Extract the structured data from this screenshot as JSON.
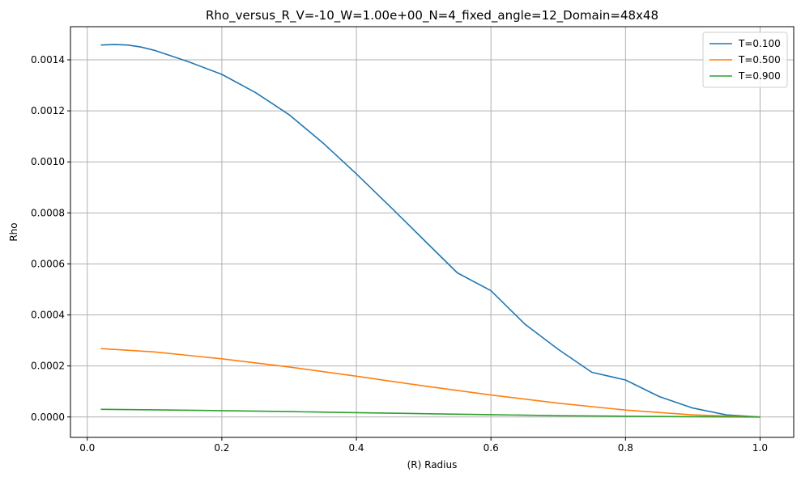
{
  "chart_data": {
    "type": "line",
    "title": "Rho_versus_R_V=-10_W=1.00e+00_N=4_fixed_angle=12_Domain=48x48",
    "xlabel": "(R) Radius",
    "ylabel": "Rho",
    "xlim": [
      -0.025,
      1.05
    ],
    "ylim": [
      -8e-05,
      0.00153
    ],
    "xticks": [
      0.0,
      0.2,
      0.4,
      0.6,
      0.8,
      1.0
    ],
    "xtick_labels": [
      "0.0",
      "0.2",
      "0.4",
      "0.6",
      "0.8",
      "1.0"
    ],
    "yticks": [
      0,
      0.0002,
      0.0004,
      0.0006,
      0.0008,
      0.001,
      0.0012,
      0.0014
    ],
    "ytick_labels": [
      "0.0000",
      "0.0002",
      "0.0004",
      "0.0006",
      "0.0008",
      "0.0010",
      "0.0012",
      "0.0014"
    ],
    "grid": true,
    "legend_position": "top-right",
    "series": [
      {
        "name": "T=0.100",
        "color": "#1f77b4",
        "x": [
          0.02,
          0.04,
          0.06,
          0.08,
          0.1,
          0.15,
          0.2,
          0.25,
          0.3,
          0.35,
          0.4,
          0.45,
          0.5,
          0.55,
          0.6,
          0.65,
          0.7,
          0.75,
          0.8,
          0.85,
          0.9,
          0.95,
          1.0
        ],
        "y": [
          0.001458,
          0.00146,
          0.001458,
          0.00145,
          0.001437,
          0.001393,
          0.001343,
          0.001272,
          0.001185,
          0.001075,
          0.000953,
          0.000825,
          0.000695,
          0.000565,
          0.000495,
          0.000365,
          0.000265,
          0.000175,
          0.000145,
          8e-05,
          3.5e-05,
          8e-06,
          0.0
        ]
      },
      {
        "name": "T=0.500",
        "color": "#ff7f0e",
        "x": [
          0.02,
          0.1,
          0.2,
          0.3,
          0.4,
          0.5,
          0.6,
          0.7,
          0.8,
          0.9,
          1.0
        ],
        "y": [
          0.000268,
          0.000255,
          0.000228,
          0.000196,
          0.00016,
          0.000122,
          8.6e-05,
          5.4e-05,
          2.7e-05,
          8e-06,
          0.0
        ]
      },
      {
        "name": "T=0.900",
        "color": "#2ca02c",
        "x": [
          0.02,
          0.1,
          0.2,
          0.3,
          0.4,
          0.5,
          0.6,
          0.7,
          0.8,
          0.9,
          1.0
        ],
        "y": [
          3e-05,
          2.8e-05,
          2.5e-05,
          2.1e-05,
          1.7e-05,
          1.3e-05,
          9e-06,
          5e-06,
          3e-06,
          1e-06,
          0.0
        ]
      }
    ]
  }
}
